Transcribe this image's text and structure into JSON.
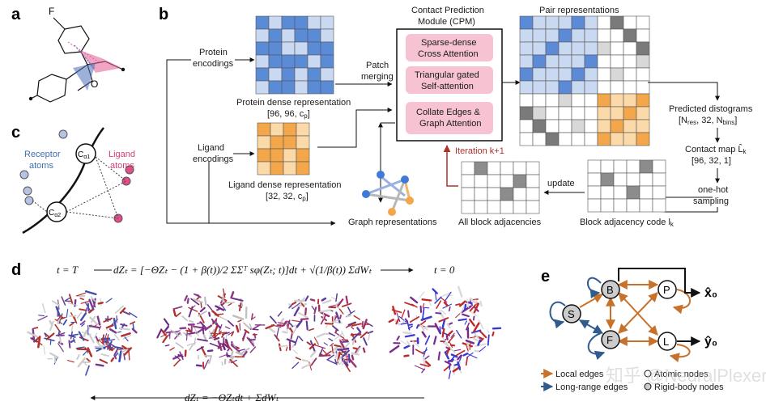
{
  "panels": {
    "a": "a",
    "b": "b",
    "c": "c",
    "d": "d",
    "e": "e"
  },
  "panel_a": {
    "atom_label": "F",
    "ring_atom": "O"
  },
  "panel_b": {
    "protein_encodings": [
      "Protein",
      "encodings"
    ],
    "ligand_encodings": [
      "Ligand",
      "encodings"
    ],
    "protein_dense": [
      "Protein dense representation",
      "[96, 96, c",
      "p",
      "]"
    ],
    "ligand_dense": [
      "Ligand dense representation",
      "[32, 32, c",
      "p",
      "]"
    ],
    "patch_merging": [
      "Patch",
      "merging"
    ],
    "cpm_title": [
      "Contact Prediction",
      "Module (CPM)"
    ],
    "cpm_blocks": [
      [
        "Sparse-dense",
        "Cross Attention"
      ],
      [
        "Triangular gated",
        "Self-attention"
      ],
      [
        "Collate Edges &",
        "Graph Attention"
      ]
    ],
    "pair_representations": "Pair representations",
    "predicted_distograms": [
      "Predicted distograms",
      "[N",
      "res",
      ", 32, N",
      "bins",
      "]"
    ],
    "contact_map": [
      "Contact map L̂",
      "k",
      "[96, 32, 1]"
    ],
    "one_hot": [
      "one-hot",
      "sampling"
    ],
    "block_adjacency_code": [
      "Block adjacency code l",
      "k"
    ],
    "update": "update",
    "all_block_adjacencies": "All block adjacencies",
    "iteration": "Iteration k+1",
    "graph_representations": "Graph representations"
  },
  "panel_c": {
    "receptor": [
      "Receptor",
      "atoms"
    ],
    "ligand": [
      "Ligand",
      "atoms"
    ],
    "ca1": [
      "C",
      "α1"
    ],
    "ca2": [
      "C",
      "α2"
    ]
  },
  "panel_d": {
    "t_start": "t = T",
    "t_end": "t = 0",
    "forward_sde": "dZₜ = [−ΘZₜ − (1 + β(t))/2 ΣΣᵀ sφ(Zₜ; t)]dt + √(1/β(t)) ΣdWₜ",
    "reverse_sde": "dZₜ = −ΘZₜdt + ΣdWₜ"
  },
  "panel_e": {
    "nodes": [
      "B",
      "P",
      "S",
      "F",
      "L"
    ],
    "x0": "x̂₀",
    "y0": "ŷ₀",
    "legend": [
      {
        "label": "Local edges",
        "color": "#c8712a"
      },
      {
        "label": "Long-range edges",
        "color": "#2f5b8f"
      }
    ],
    "legend_nodes": [
      "Atomic nodes",
      "Rigid-body nodes"
    ]
  },
  "watermark": "知乎 @NeuralPlexer",
  "colors": {
    "blue": "#5b8bd6",
    "lightblue": "#c9d9f2",
    "orange": "#f4a64a",
    "lightorange": "#fbd9a8",
    "pink": "#f7c3d2",
    "red": "#b0302a",
    "gray": "#8c8c8c",
    "local": "#c8712a",
    "longrange": "#2f5b8f"
  }
}
